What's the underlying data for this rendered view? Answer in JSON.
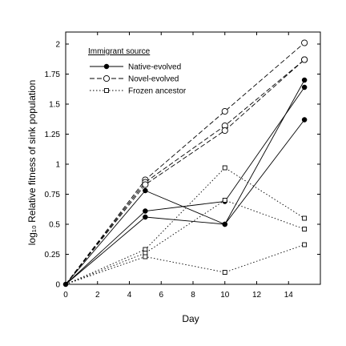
{
  "chart_data": {
    "type": "line",
    "xlabel": "Day",
    "ylabel": "log₁₀ Relative fitness of sink population",
    "xlim": [
      0,
      16
    ],
    "ylim": [
      0,
      2.1
    ],
    "x_ticks": [
      0,
      2,
      4,
      6,
      8,
      10,
      12,
      14
    ],
    "x_tick_labels": [
      "0",
      "2",
      "4",
      "6",
      "8",
      "10",
      "12",
      "14"
    ],
    "y_ticks": [
      0,
      0.25,
      0.5,
      0.75,
      1,
      1.25,
      1.5,
      1.75,
      2
    ],
    "y_tick_labels": [
      "0",
      "0.25",
      "0.5",
      "0.75",
      "1",
      "1.25",
      "1.5",
      "1.75",
      "2"
    ],
    "grid": false,
    "legend": {
      "title": "Immigrant source",
      "placement": "top-left",
      "entries": [
        {
          "label": "Native-evolved",
          "style": "solid",
          "marker": "filled-circle"
        },
        {
          "label": "Novel-evolved",
          "style": "dashed",
          "marker": "open-circle"
        },
        {
          "label": "Frozen ancestor",
          "style": "dotted",
          "marker": "open-square"
        }
      ]
    },
    "x": [
      0,
      5,
      10,
      15
    ],
    "series": [
      {
        "group": "Native-evolved",
        "values": [
          0,
          0.78,
          0.5,
          1.7
        ]
      },
      {
        "group": "Native-evolved",
        "values": [
          0,
          0.61,
          0.69,
          1.64
        ]
      },
      {
        "group": "Native-evolved",
        "values": [
          0,
          0.56,
          0.5,
          1.37
        ]
      },
      {
        "group": "Novel-evolved",
        "values": [
          0,
          0.87,
          1.44,
          2.01
        ]
      },
      {
        "group": "Novel-evolved",
        "values": [
          0,
          0.85,
          1.32,
          1.87
        ]
      },
      {
        "group": "Novel-evolved",
        "values": [
          0,
          0.83,
          1.28,
          1.87
        ]
      },
      {
        "group": "Frozen ancestor",
        "values": [
          0,
          0.29,
          0.97,
          0.55
        ]
      },
      {
        "group": "Frozen ancestor",
        "values": [
          0,
          0.26,
          0.7,
          0.46
        ]
      },
      {
        "group": "Frozen ancestor",
        "values": [
          0,
          0.23,
          0.1,
          0.33
        ]
      }
    ]
  }
}
